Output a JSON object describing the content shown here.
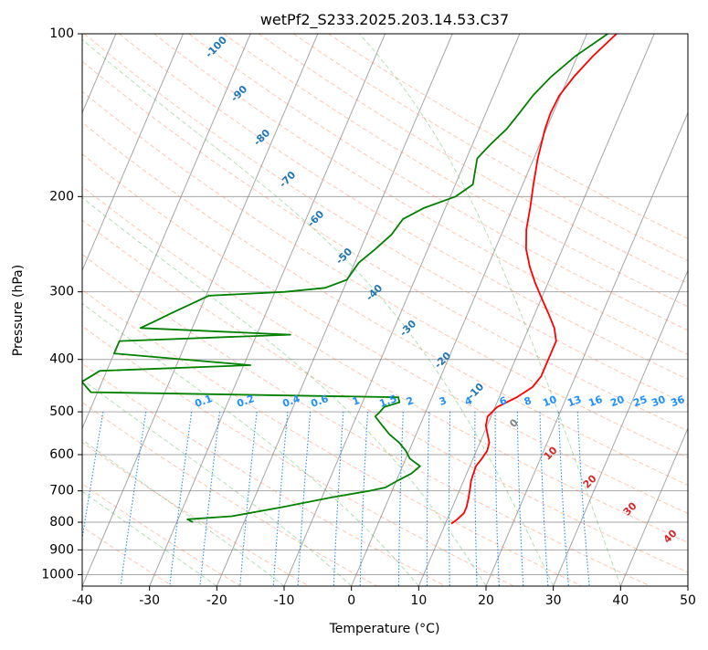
{
  "chart_data": {
    "type": "line",
    "title": "wetPf2_S233.2025.203.14.53.C37",
    "xlabel": "Temperature (°C)",
    "ylabel": "Pressure (hPa)",
    "xlim": [
      -40,
      50
    ],
    "ylim": [
      1050,
      100
    ],
    "y_scale": "log",
    "grid": true,
    "x_ticks": [
      -40,
      -30,
      -20,
      -10,
      0,
      10,
      20,
      30,
      40,
      50
    ],
    "y_ticks": [
      100,
      200,
      300,
      400,
      500,
      600,
      700,
      800,
      900,
      1000
    ],
    "series": [
      {
        "color": "#ff0000",
        "points": [
          [
            100,
            4.4
          ],
          [
            110,
            2.3
          ],
          [
            120,
            0.8
          ],
          [
            130,
            -0.2
          ],
          [
            140,
            -0.4
          ],
          [
            150,
            -0.2
          ],
          [
            170,
            0.6
          ],
          [
            190,
            1.6
          ],
          [
            210,
            2.6
          ],
          [
            230,
            3.4
          ],
          [
            250,
            4.6
          ],
          [
            270,
            6.3
          ],
          [
            290,
            8.2
          ],
          [
            310,
            10.2
          ],
          [
            330,
            12.1
          ],
          [
            350,
            13.8
          ],
          [
            370,
            14.9
          ],
          [
            390,
            14.9
          ],
          [
            410,
            14.9
          ],
          [
            430,
            14.9
          ],
          [
            450,
            14.3
          ],
          [
            470,
            12.6
          ],
          [
            490,
            10.3
          ],
          [
            510,
            9.5
          ],
          [
            530,
            9.8
          ],
          [
            550,
            10.6
          ],
          [
            570,
            11.4
          ],
          [
            590,
            11.6
          ],
          [
            610,
            11.3
          ],
          [
            630,
            10.9
          ],
          [
            650,
            11.0
          ],
          [
            670,
            11.1
          ],
          [
            690,
            11.4
          ],
          [
            720,
            11.8
          ],
          [
            750,
            12.1
          ],
          [
            770,
            12.1
          ],
          [
            790,
            11.5
          ],
          [
            805,
            10.9
          ]
        ]
      },
      {
        "color": "#008000",
        "points": [
          [
            100,
            3.1
          ],
          [
            110,
            -0.3
          ],
          [
            120,
            -2.6
          ],
          [
            130,
            -4.1
          ],
          [
            140,
            -5.0
          ],
          [
            150,
            -5.9
          ],
          [
            160,
            -7.3
          ],
          [
            170,
            -8.4
          ],
          [
            180,
            -7.9
          ],
          [
            190,
            -7.4
          ],
          [
            200,
            -9.2
          ],
          [
            210,
            -13.2
          ],
          [
            220,
            -15.6
          ],
          [
            235,
            -16.3
          ],
          [
            250,
            -17.8
          ],
          [
            265,
            -19.4
          ],
          [
            285,
            -20.1
          ],
          [
            295,
            -22.8
          ],
          [
            300,
            -28.5
          ],
          [
            305,
            -39.6
          ],
          [
            330,
            -44.3
          ],
          [
            340,
            -46.0
          ],
          [
            350,
            -47.7
          ],
          [
            360,
            -25.0
          ],
          [
            370,
            -50.0
          ],
          [
            390,
            -50.0
          ],
          [
            410,
            -29.0
          ],
          [
            420,
            -51.0
          ],
          [
            440,
            -53.0
          ],
          [
            460,
            -51.0
          ],
          [
            470,
            -5.0
          ],
          [
            480,
            -4.5
          ],
          [
            490,
            -6.5
          ],
          [
            500,
            -6.8
          ],
          [
            510,
            -7.2
          ],
          [
            520,
            -6.4
          ],
          [
            530,
            -5.6
          ],
          [
            550,
            -4.0
          ],
          [
            570,
            -2.0
          ],
          [
            590,
            -0.5
          ],
          [
            610,
            0.6
          ],
          [
            630,
            2.6
          ],
          [
            650,
            1.8
          ],
          [
            670,
            0.2
          ],
          [
            690,
            -1.2
          ],
          [
            700,
            -3.4
          ],
          [
            720,
            -8.6
          ],
          [
            750,
            -15.2
          ],
          [
            780,
            -22.2
          ],
          [
            790,
            -28.6
          ],
          [
            800,
            -27.6
          ]
        ]
      }
    ],
    "annotations": {
      "dry_adiabats": [
        "-100",
        "-90",
        "-80",
        "-70",
        "-60",
        "-50",
        "-40",
        "-30",
        "-20",
        "-10"
      ],
      "mixing_ratios": [
        "0.1",
        "0.2",
        "0.4",
        "0.6",
        "1",
        "1.5",
        "2",
        "3",
        "4",
        "6",
        "8",
        "10",
        "13",
        "16",
        "20",
        "25",
        "30",
        "36"
      ],
      "moist_adiabats": [
        "0",
        "10",
        "20",
        "30",
        "40"
      ]
    }
  },
  "colors": {
    "temperature": "#ff0000",
    "dewpoint": "#008000",
    "dry_adiabat": "#ff7f50",
    "moist_adiabat": "#3cb043",
    "mixing_ratio": "#1e90ff",
    "isotherm": "#808080",
    "isobar": "#808080",
    "label_dry": "#1f77b4",
    "label_moist": "#d62728",
    "label_mix": "#1e90ff"
  }
}
